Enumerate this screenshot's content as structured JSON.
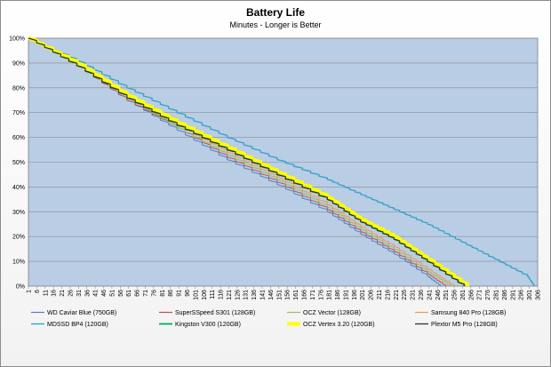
{
  "chart_data": {
    "type": "line",
    "title": "Battery Life",
    "subtitle": "Minutes - Longer is Better",
    "xlabel": "",
    "ylabel": "",
    "ylim": [
      0,
      100
    ],
    "xlim": [
      1,
      306
    ],
    "grid": true,
    "legend_position": "bottom",
    "yticks": [
      "0%",
      "10%",
      "20%",
      "30%",
      "40%",
      "50%",
      "60%",
      "70%",
      "80%",
      "90%",
      "100%"
    ],
    "xticks": [
      1,
      6,
      11,
      16,
      21,
      26,
      31,
      36,
      41,
      46,
      51,
      56,
      61,
      66,
      71,
      76,
      81,
      86,
      91,
      96,
      101,
      106,
      111,
      116,
      121,
      126,
      131,
      136,
      141,
      146,
      151,
      156,
      161,
      166,
      171,
      176,
      181,
      186,
      191,
      196,
      201,
      206,
      211,
      216,
      221,
      226,
      231,
      236,
      241,
      246,
      251,
      256,
      261,
      266,
      271,
      276,
      281,
      286,
      291,
      296,
      301,
      306
    ],
    "series": [
      {
        "name": "WD Caviar Blue (750GB)",
        "color": "#4f81bd",
        "width": 1,
        "x": [
          1,
          30,
          60,
          90,
          120,
          150,
          180,
          200,
          220,
          240,
          248
        ],
        "y": [
          100,
          89,
          75,
          63,
          51,
          41,
          30,
          21,
          13,
          4,
          0
        ]
      },
      {
        "name": "SuperSSpeed S301 (128GB)",
        "color": "#c0504d",
        "width": 1,
        "x": [
          1,
          30,
          60,
          90,
          120,
          150,
          180,
          200,
          220,
          240,
          251
        ],
        "y": [
          100,
          89,
          75,
          64,
          52,
          42,
          31,
          22,
          14,
          5,
          0
        ]
      },
      {
        "name": "OCZ Vector (128GB)",
        "color": "#9bbb59",
        "width": 1,
        "x": [
          1,
          30,
          60,
          90,
          120,
          150,
          180,
          200,
          220,
          240,
          254
        ],
        "y": [
          100,
          89,
          76,
          64,
          53,
          43,
          32,
          23,
          15,
          6,
          0
        ]
      },
      {
        "name": "Samsung 840 Pro (128GB)",
        "color": "#f79646",
        "width": 1,
        "x": [
          1,
          30,
          60,
          90,
          120,
          150,
          180,
          200,
          220,
          240,
          256
        ],
        "y": [
          100,
          89,
          76,
          65,
          54,
          44,
          33,
          24,
          16,
          7,
          0
        ]
      },
      {
        "name": "MDSSD BP4 (120GB)",
        "color": "#31a0c7",
        "width": 1.3,
        "x": [
          1,
          30,
          60,
          90,
          120,
          150,
          180,
          200,
          220,
          240,
          260,
          280,
          300,
          304
        ],
        "y": [
          100,
          91,
          80,
          70,
          60,
          51,
          43,
          37,
          31,
          25,
          18,
          11,
          4,
          0
        ]
      },
      {
        "name": "Kingston V300 (120GB)",
        "color": "#00b050",
        "width": 1.8,
        "x": [
          1,
          30,
          60,
          90,
          120,
          150,
          180,
          200,
          220,
          240,
          262
        ],
        "y": [
          100,
          89,
          76,
          65,
          55,
          45,
          35,
          26,
          19,
          10,
          0
        ]
      },
      {
        "name": "OCZ Vertex 3.20 (120GB)",
        "color": "#ffff00",
        "width": 4,
        "x": [
          1,
          30,
          60,
          90,
          120,
          150,
          180,
          200,
          220,
          240,
          264
        ],
        "y": [
          100,
          90,
          77,
          66,
          56,
          46,
          36,
          27,
          20,
          11,
          0
        ]
      },
      {
        "name": "Plextor M5 Pro (128GB)",
        "color": "#333333",
        "width": 1.3,
        "x": [
          1,
          30,
          60,
          90,
          120,
          150,
          180,
          200,
          220,
          240,
          262
        ],
        "y": [
          100,
          89,
          76,
          65,
          55,
          45,
          35,
          26,
          19,
          10,
          0
        ]
      }
    ]
  }
}
